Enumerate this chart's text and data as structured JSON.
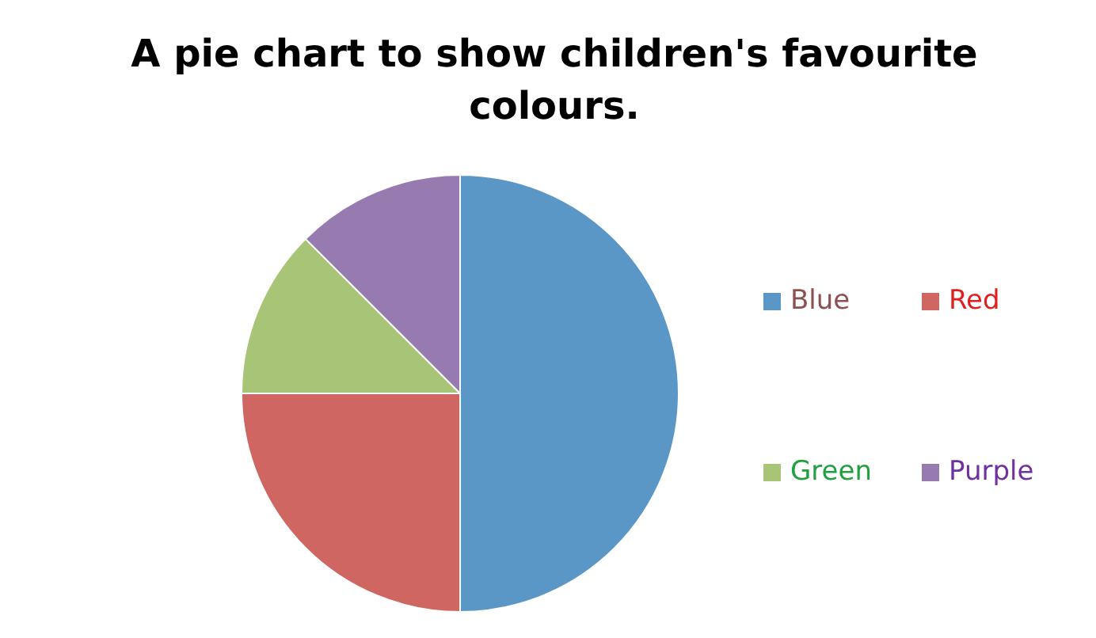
{
  "chart_data": {
    "type": "pie",
    "title": "A pie chart to show children's favourite colours.",
    "categories": [
      "Blue",
      "Red",
      "Green",
      "Purple"
    ],
    "values": [
      50,
      25,
      12.5,
      12.5
    ],
    "colors": [
      "#5b97c6",
      "#d06661",
      "#a8c476",
      "#977bb0"
    ],
    "legend": "right"
  }
}
